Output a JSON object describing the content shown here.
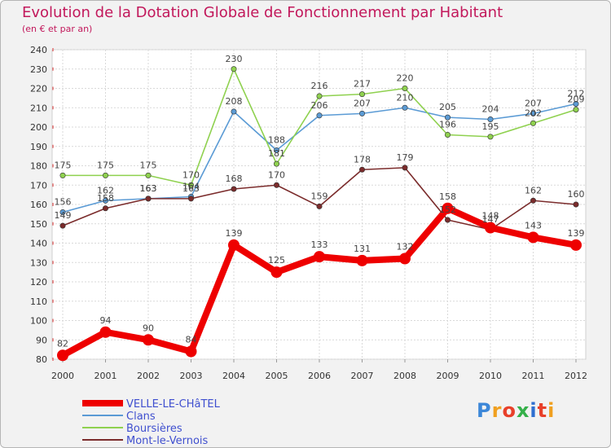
{
  "header": {
    "title": "Evolution de la Dotation Globale de Fonctionnement par Habitant",
    "subtitle": "(en € et par an)"
  },
  "logo": {
    "text": "Proxiti",
    "letters": [
      "P",
      "r",
      "o",
      "x",
      "i",
      "t",
      "i"
    ],
    "letter_colors": [
      "#3c87d8",
      "#f0a020",
      "#e8402a",
      "#35b04a",
      "#2f6fd0",
      "#e8402a",
      "#f0a020"
    ]
  },
  "chart_data": {
    "type": "line",
    "title": "Evolution de la Dotation Globale de Fonctionnement par Habitant",
    "subtitle": "(en € et par an)",
    "xlabel": "",
    "ylabel": "",
    "x": [
      "2000",
      "2001",
      "2002",
      "2003",
      "2004",
      "2005",
      "2006",
      "2007",
      "2008",
      "2009",
      "2010",
      "2011",
      "2012"
    ],
    "ylim": [
      80,
      240
    ],
    "yticks": [
      80,
      90,
      100,
      110,
      120,
      130,
      140,
      150,
      160,
      170,
      180,
      190,
      200,
      210,
      220,
      230,
      240
    ],
    "grid": true,
    "legend_position": "bottom-left",
    "series": [
      {
        "name": "VELLE-LE-CHâTEL",
        "values": [
          82,
          94,
          90,
          84,
          139,
          125,
          133,
          131,
          132,
          158,
          148,
          143,
          139
        ],
        "color": "#ee0000",
        "emphasis": true,
        "labels": [
          "82",
          "94",
          "90",
          "84",
          "139",
          "125",
          "133",
          "131",
          "132",
          "158",
          "148",
          "143",
          "139"
        ]
      },
      {
        "name": "Clans",
        "values": [
          156,
          162,
          163,
          164,
          208,
          188,
          206,
          207,
          210,
          205,
          204,
          207,
          212
        ],
        "color": "#5b9bd5",
        "labels": [
          "156",
          "162",
          "163",
          "164",
          "208",
          "188",
          "206",
          "207",
          "210",
          "205",
          "204",
          "207",
          "212"
        ]
      },
      {
        "name": "Boursières",
        "values": [
          175,
          175,
          175,
          170,
          230,
          181,
          216,
          217,
          220,
          196,
          195,
          202,
          209
        ],
        "color": "#8fd14f",
        "labels": [
          "175",
          "175",
          "175",
          "170",
          "230",
          "181",
          "216",
          "217",
          "220",
          "196",
          "195",
          "202",
          "209"
        ]
      },
      {
        "name": "Mont-le-Vernois",
        "values": [
          149,
          158,
          163,
          163,
          168,
          170,
          159,
          178,
          179,
          152,
          147,
          162,
          160
        ],
        "color": "#7b2c2c",
        "labels": [
          "149",
          "158",
          "163",
          "163",
          "168",
          "170",
          "159",
          "178",
          "179",
          "152",
          "147",
          "162",
          "160"
        ]
      }
    ]
  }
}
